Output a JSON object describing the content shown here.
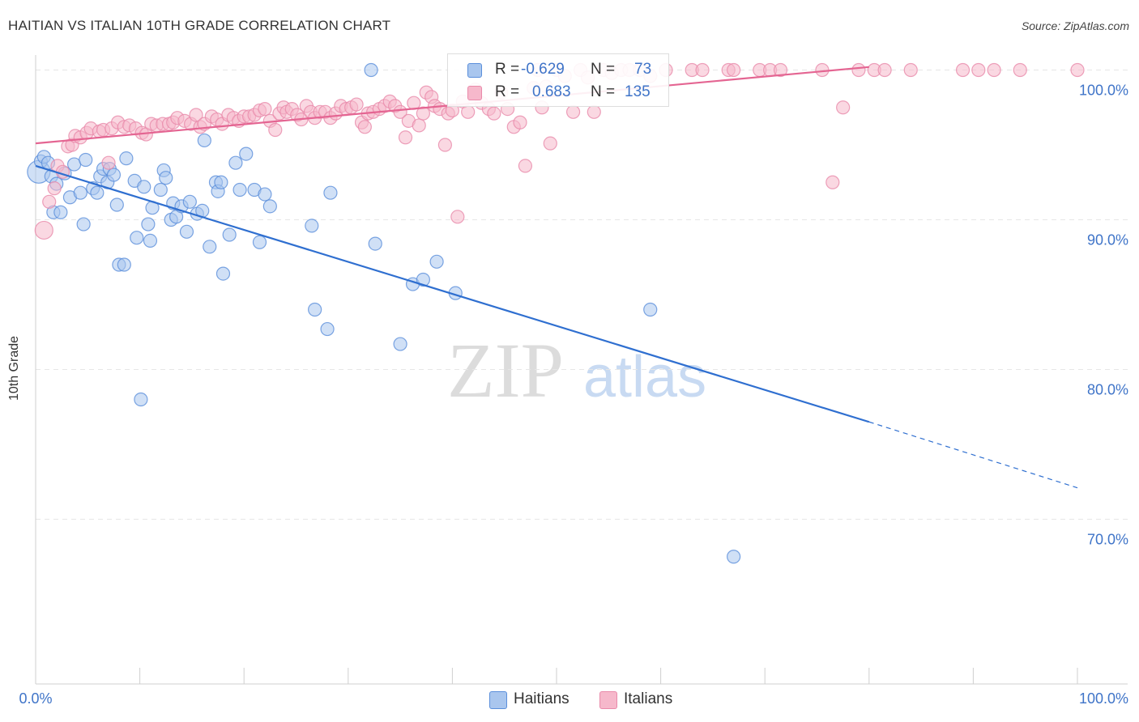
{
  "header": {
    "title": "HAITIAN VS ITALIAN 10TH GRADE CORRELATION CHART",
    "source": "Source: ZipAtlas.com"
  },
  "watermark": {
    "part1": "ZIP",
    "part2": "atlas"
  },
  "colors": {
    "haitian_fill": "#a9c6ee",
    "haitian_stroke": "#5b8fdb",
    "haitian_line": "#2f6fd0",
    "italian_fill": "#f6b8cb",
    "italian_stroke": "#e98aaa",
    "italian_line": "#e46592",
    "axis_text": "#3f74c8"
  },
  "legend_stats": {
    "haitians": {
      "r_label": "R =",
      "r_value": "-0.629",
      "n_label": "N =",
      "n_value": "73"
    },
    "italians": {
      "r_label": "R =",
      "r_value": "0.683",
      "n_label": "N =",
      "n_value": "135"
    }
  },
  "legend": {
    "haitians": "Haitians",
    "italians": "Italians"
  },
  "chart_data": {
    "type": "scatter",
    "title": "HAITIAN VS ITALIAN 10TH GRADE CORRELATION CHART",
    "xlabel": "",
    "ylabel": "10th Grade",
    "xlim": [
      0,
      100
    ],
    "ylim": [
      59,
      101
    ],
    "x_tick_labels": [
      "0.0%",
      "100.0%"
    ],
    "y_ticks": [
      70,
      80,
      90,
      100
    ],
    "y_tick_labels": [
      "70.0%",
      "80.0%",
      "90.0%",
      "100.0%"
    ],
    "grid": true,
    "legend_position": "bottom",
    "series": [
      {
        "name": "Haitians",
        "r": -0.629,
        "n": 73,
        "trend": {
          "x0": 0,
          "y0": 93.6,
          "x1": 80,
          "y1": 76.5,
          "dash_to_x": 100,
          "dash_to_y": 72.1
        },
        "points": [
          [
            0.3,
            93.2
          ],
          [
            0.5,
            93.9
          ],
          [
            0.8,
            94.2
          ],
          [
            1.2,
            93.8
          ],
          [
            1.5,
            92.9
          ],
          [
            1.7,
            90.5
          ],
          [
            2.0,
            92.4
          ],
          [
            2.4,
            90.5
          ],
          [
            2.8,
            93.1
          ],
          [
            3.3,
            91.5
          ],
          [
            3.7,
            93.7
          ],
          [
            4.3,
            91.8
          ],
          [
            4.6,
            89.7
          ],
          [
            4.8,
            94.0
          ],
          [
            5.5,
            92.1
          ],
          [
            5.9,
            91.8
          ],
          [
            6.2,
            92.9
          ],
          [
            6.5,
            93.4
          ],
          [
            6.9,
            92.5
          ],
          [
            7.1,
            93.4
          ],
          [
            7.5,
            93.0
          ],
          [
            7.8,
            91.0
          ],
          [
            8.0,
            87.0
          ],
          [
            8.5,
            87.0
          ],
          [
            8.7,
            94.1
          ],
          [
            9.5,
            92.6
          ],
          [
            9.7,
            88.8
          ],
          [
            10.1,
            78.0
          ],
          [
            10.4,
            92.2
          ],
          [
            10.8,
            89.7
          ],
          [
            11.0,
            88.6
          ],
          [
            11.2,
            90.8
          ],
          [
            12.0,
            92.0
          ],
          [
            12.3,
            93.3
          ],
          [
            12.5,
            92.8
          ],
          [
            13.0,
            90.0
          ],
          [
            13.2,
            91.1
          ],
          [
            13.5,
            90.2
          ],
          [
            14.0,
            90.9
          ],
          [
            14.5,
            89.2
          ],
          [
            14.8,
            91.2
          ],
          [
            15.5,
            90.4
          ],
          [
            16.0,
            90.6
          ],
          [
            16.2,
            95.3
          ],
          [
            16.7,
            88.2
          ],
          [
            17.3,
            92.5
          ],
          [
            17.5,
            91.9
          ],
          [
            17.8,
            92.5
          ],
          [
            18.0,
            86.4
          ],
          [
            18.6,
            89.0
          ],
          [
            19.2,
            93.8
          ],
          [
            19.6,
            92.0
          ],
          [
            20.2,
            94.4
          ],
          [
            21.0,
            92.0
          ],
          [
            21.5,
            88.5
          ],
          [
            22.0,
            91.7
          ],
          [
            22.5,
            90.9
          ],
          [
            26.5,
            89.6
          ],
          [
            26.8,
            84.0
          ],
          [
            28.0,
            82.7
          ],
          [
            28.3,
            91.8
          ],
          [
            32.2,
            100.0
          ],
          [
            32.6,
            88.4
          ],
          [
            35.0,
            81.7
          ],
          [
            36.2,
            85.7
          ],
          [
            37.2,
            86.0
          ],
          [
            38.5,
            87.2
          ],
          [
            40.3,
            85.1
          ],
          [
            59.0,
            84.0
          ],
          [
            67.0,
            67.5
          ]
        ]
      },
      {
        "name": "Italians",
        "r": 0.683,
        "n": 135,
        "trend": {
          "x0": 0,
          "y0": 95.1,
          "x1": 80,
          "y1": 100.2
        },
        "points": [
          [
            0.8,
            89.3
          ],
          [
            1.3,
            91.2
          ],
          [
            1.8,
            92.1
          ],
          [
            2.1,
            93.6
          ],
          [
            2.6,
            93.2
          ],
          [
            3.1,
            94.9
          ],
          [
            3.5,
            95.0
          ],
          [
            3.8,
            95.6
          ],
          [
            4.3,
            95.5
          ],
          [
            4.9,
            95.8
          ],
          [
            5.3,
            96.1
          ],
          [
            6.1,
            95.9
          ],
          [
            6.5,
            96.0
          ],
          [
            7.0,
            93.8
          ],
          [
            7.3,
            96.1
          ],
          [
            7.9,
            96.5
          ],
          [
            8.5,
            96.2
          ],
          [
            9.0,
            96.3
          ],
          [
            9.6,
            96.1
          ],
          [
            10.2,
            95.8
          ],
          [
            10.6,
            95.7
          ],
          [
            11.1,
            96.4
          ],
          [
            11.6,
            96.3
          ],
          [
            12.2,
            96.4
          ],
          [
            12.8,
            96.4
          ],
          [
            13.2,
            96.5
          ],
          [
            13.6,
            96.8
          ],
          [
            14.3,
            96.6
          ],
          [
            14.9,
            96.4
          ],
          [
            15.4,
            97.0
          ],
          [
            15.8,
            96.2
          ],
          [
            16.2,
            96.4
          ],
          [
            16.9,
            96.9
          ],
          [
            17.4,
            96.7
          ],
          [
            17.9,
            96.4
          ],
          [
            18.5,
            97.0
          ],
          [
            19.0,
            96.8
          ],
          [
            19.5,
            96.6
          ],
          [
            20.0,
            96.9
          ],
          [
            20.5,
            96.9
          ],
          [
            21.0,
            97.0
          ],
          [
            21.5,
            97.3
          ],
          [
            22.0,
            97.4
          ],
          [
            22.5,
            96.6
          ],
          [
            23.0,
            96.0
          ],
          [
            23.4,
            97.1
          ],
          [
            23.8,
            97.5
          ],
          [
            24.1,
            97.2
          ],
          [
            24.6,
            97.4
          ],
          [
            25.1,
            97.0
          ],
          [
            25.5,
            96.7
          ],
          [
            26.0,
            97.6
          ],
          [
            26.4,
            97.2
          ],
          [
            26.8,
            96.8
          ],
          [
            27.3,
            97.2
          ],
          [
            27.8,
            97.2
          ],
          [
            28.3,
            96.8
          ],
          [
            28.8,
            97.1
          ],
          [
            29.3,
            97.6
          ],
          [
            29.8,
            97.4
          ],
          [
            30.3,
            97.5
          ],
          [
            30.8,
            97.7
          ],
          [
            31.3,
            96.5
          ],
          [
            31.6,
            96.2
          ],
          [
            31.9,
            97.1
          ],
          [
            32.4,
            97.2
          ],
          [
            33.0,
            97.4
          ],
          [
            33.5,
            97.6
          ],
          [
            34.0,
            97.9
          ],
          [
            34.5,
            97.6
          ],
          [
            35.0,
            97.2
          ],
          [
            35.5,
            95.5
          ],
          [
            35.8,
            96.6
          ],
          [
            36.3,
            97.8
          ],
          [
            36.8,
            96.3
          ],
          [
            37.2,
            97.1
          ],
          [
            37.5,
            98.5
          ],
          [
            38.0,
            98.2
          ],
          [
            38.3,
            97.6
          ],
          [
            38.8,
            97.4
          ],
          [
            39.3,
            95.0
          ],
          [
            39.6,
            97.1
          ],
          [
            40.0,
            97.3
          ],
          [
            40.5,
            90.2
          ],
          [
            41.0,
            97.9
          ],
          [
            41.5,
            97.2
          ],
          [
            42.2,
            98.7
          ],
          [
            42.8,
            97.8
          ],
          [
            43.5,
            97.4
          ],
          [
            44.0,
            97.1
          ],
          [
            44.7,
            98.5
          ],
          [
            45.3,
            97.4
          ],
          [
            45.9,
            96.2
          ],
          [
            46.5,
            96.5
          ],
          [
            47.0,
            93.6
          ],
          [
            47.8,
            98.8
          ],
          [
            48.2,
            100.0
          ],
          [
            48.6,
            97.5
          ],
          [
            49.0,
            98.9
          ],
          [
            49.4,
            95.1
          ],
          [
            50.0,
            100.0
          ],
          [
            50.8,
            99.6
          ],
          [
            51.6,
            97.2
          ],
          [
            52.3,
            100.0
          ],
          [
            53.0,
            99.5
          ],
          [
            53.6,
            97.2
          ],
          [
            54.5,
            100.0
          ],
          [
            55.3,
            99.8
          ],
          [
            56.2,
            100.0
          ],
          [
            57.0,
            100.0
          ],
          [
            58.0,
            100.0
          ],
          [
            59.0,
            99.6
          ],
          [
            60.5,
            100.0
          ],
          [
            63.0,
            100.0
          ],
          [
            64.0,
            100.0
          ],
          [
            66.5,
            100.0
          ],
          [
            67.0,
            100.0
          ],
          [
            69.5,
            100.0
          ],
          [
            70.5,
            100.0
          ],
          [
            71.5,
            100.0
          ],
          [
            75.5,
            100.0
          ],
          [
            76.5,
            92.5
          ],
          [
            77.5,
            97.5
          ],
          [
            79.0,
            100.0
          ],
          [
            80.5,
            100.0
          ],
          [
            81.5,
            100.0
          ],
          [
            84.0,
            100.0
          ],
          [
            89.0,
            100.0
          ],
          [
            90.5,
            100.0
          ],
          [
            92.0,
            100.0
          ],
          [
            94.5,
            100.0
          ],
          [
            100.0,
            100.0
          ]
        ]
      }
    ]
  }
}
